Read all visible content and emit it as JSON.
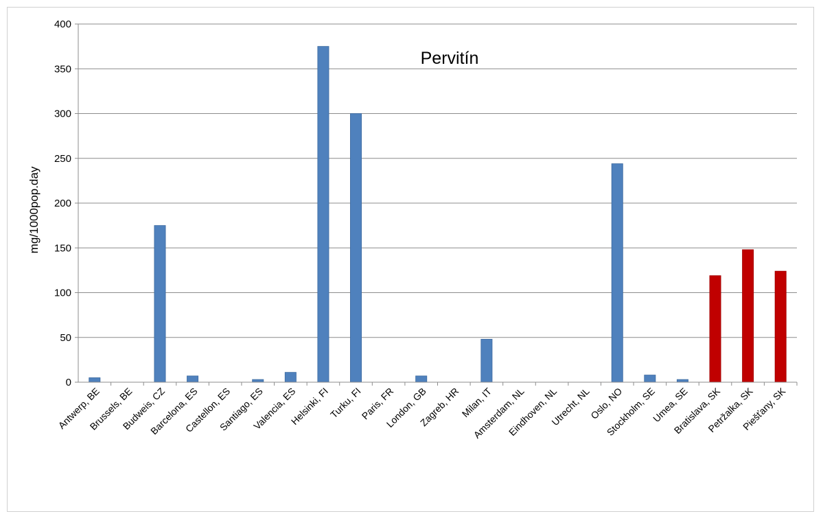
{
  "chart_data": {
    "type": "bar",
    "title": "Pervitín",
    "xlabel": "",
    "ylabel": "mg/1000pop.day",
    "ylim": [
      0,
      400
    ],
    "yticks": [
      0,
      50,
      100,
      150,
      200,
      250,
      300,
      350,
      400
    ],
    "grid": true,
    "legend": "none",
    "categories": [
      "Antwerp, BE",
      "Brussels, BE",
      "Budweis, CZ",
      "Barcelona, ES",
      "Castellon, ES",
      "Santiago, ES",
      "Valencia, ES",
      "Helsinki, FI",
      "Turku, FI",
      "Paris, FR",
      "London, GB",
      "Zagreb, HR",
      "Milan, IT",
      "Amsterdam, NL",
      "Eindhoven, NL",
      "Utrecht, NL",
      "Oslo, NO",
      "Stockholm, SE",
      "Umea, SE",
      "Bratislava, SK",
      "Petržalka, SK",
      "Piešťany, SK"
    ],
    "values": [
      5,
      0,
      175,
      7,
      0,
      3,
      11,
      375,
      300,
      0,
      7,
      0,
      48,
      0,
      0,
      0,
      244,
      8,
      3,
      119,
      148,
      124
    ],
    "colors": {
      "default": "#4F81BD",
      "highlight": "#C00000",
      "highlight_categories": [
        "Bratislava, SK",
        "Petržalka, SK",
        "Piešťany, SK"
      ]
    }
  }
}
